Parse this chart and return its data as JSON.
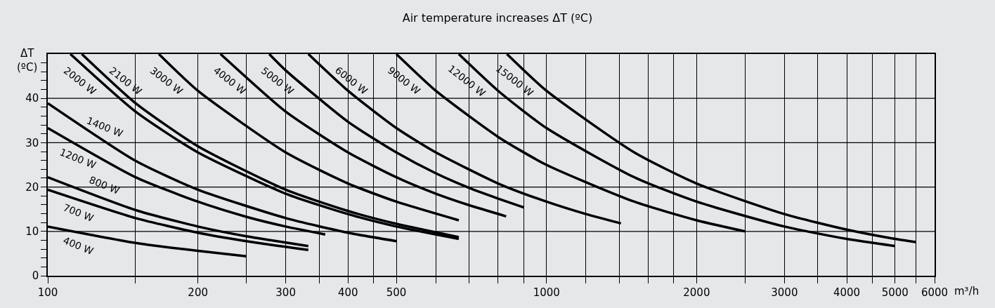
{
  "chart_data": {
    "type": "line",
    "title": "Air temperature increases ΔT (ºC)",
    "ylabel": "ΔT\n(ºC)",
    "xlabel": "m³/h",
    "log": "x",
    "xlim": [
      100,
      6000
    ],
    "xticks": [
      100,
      {
        "value": 150,
        "label": null
      },
      200,
      {
        "value": 250,
        "label": null
      },
      300,
      {
        "value": 350,
        "label": null
      },
      400,
      {
        "value": 450,
        "label": null
      },
      500,
      {
        "value": 600,
        "label": null
      },
      {
        "value": 700,
        "label": null
      },
      {
        "value": 800,
        "label": null
      },
      {
        "value": 900,
        "label": null
      },
      1000,
      {
        "value": 1200,
        "label": null
      },
      {
        "value": 1400,
        "label": null
      },
      {
        "value": 1600,
        "label": null
      },
      {
        "value": 1800,
        "label": null
      },
      2000,
      {
        "value": 2500,
        "label": null
      },
      3000,
      {
        "value": 3500,
        "label": null
      },
      4000,
      {
        "value": 4500,
        "label": null
      },
      5000,
      {
        "value": 5500,
        "label": null
      },
      6000
    ],
    "ylim": [
      0,
      50
    ],
    "yticks": [
      0,
      {
        "value": 2,
        "label": null
      },
      {
        "value": 4,
        "label": null
      },
      {
        "value": 6,
        "label": null
      },
      {
        "value": 8,
        "label": null
      },
      10,
      {
        "value": 12,
        "label": null
      },
      {
        "value": 14,
        "label": null
      },
      {
        "value": 16,
        "label": null
      },
      {
        "value": 18,
        "label": null
      },
      20,
      {
        "value": 22,
        "label": null
      },
      {
        "value": 24,
        "label": null
      },
      {
        "value": 26,
        "label": null
      },
      {
        "value": 28,
        "label": null
      },
      30,
      {
        "value": 32,
        "label": null
      },
      {
        "value": 34,
        "label": null
      },
      {
        "value": 36,
        "label": null
      },
      {
        "value": 38,
        "label": null
      },
      40,
      {
        "value": 42,
        "label": null
      },
      {
        "value": 44,
        "label": null
      },
      {
        "value": 46,
        "label": null
      },
      {
        "value": 48,
        "label": null
      }
    ],
    "grid": true,
    "legend": false,
    "marker": "none",
    "line_style": "solid",
    "series": [
      {
        "name": "400 W",
        "color": "#000000",
        "x": [
          100,
          150,
          200,
          250
        ],
        "values": [
          11.1,
          7.4,
          5.6,
          4.4
        ]
      },
      {
        "name": "700 W",
        "color": "#000000",
        "x": [
          100,
          150,
          200,
          250,
          333
        ],
        "values": [
          19.4,
          13.0,
          9.7,
          7.8,
          5.8
        ]
      },
      {
        "name": "800 W",
        "color": "#000000",
        "x": [
          100,
          150,
          200,
          250,
          333
        ],
        "values": [
          22.2,
          14.8,
          11.1,
          8.9,
          6.7
        ]
      },
      {
        "name": "1200 W",
        "color": "#000000",
        "x": [
          100,
          150,
          200,
          250,
          300,
          360
        ],
        "values": [
          33.3,
          22.2,
          16.7,
          13.3,
          11.1,
          9.3
        ]
      },
      {
        "name": "1400 W",
        "color": "#000000",
        "x": [
          100,
          150,
          200,
          300,
          400,
          500
        ],
        "values": [
          38.9,
          25.9,
          19.4,
          13.0,
          9.7,
          7.8
        ]
      },
      {
        "name": "2000 W",
        "color": "#000000",
        "x": [
          111,
          150,
          200,
          300,
          400,
          500,
          667
        ],
        "values": [
          50,
          37.0,
          27.8,
          18.5,
          13.9,
          11.1,
          8.3
        ]
      },
      {
        "name": "2100 W",
        "color": "#000000",
        "x": [
          117,
          150,
          200,
          300,
          400,
          500,
          667
        ],
        "values": [
          50,
          38.9,
          29.2,
          19.4,
          14.6,
          11.7,
          8.7
        ]
      },
      {
        "name": "3000 W",
        "color": "#000000",
        "x": [
          167,
          200,
          300,
          400,
          500,
          667
        ],
        "values": [
          50,
          41.7,
          27.8,
          20.8,
          16.7,
          12.5
        ]
      },
      {
        "name": "4000 W",
        "color": "#000000",
        "x": [
          222,
          300,
          400,
          500,
          600,
          700,
          830
        ],
        "values": [
          50,
          37.0,
          27.8,
          22.2,
          18.5,
          15.9,
          13.4
        ]
      },
      {
        "name": "5000 W",
        "color": "#000000",
        "x": [
          278,
          300,
          400,
          500,
          600,
          700,
          800,
          900
        ],
        "values": [
          50,
          46.3,
          34.7,
          27.8,
          23.1,
          19.8,
          17.4,
          15.4
        ]
      },
      {
        "name": "6000 W",
        "color": "#000000",
        "x": [
          333,
          400,
          500,
          600,
          800,
          1000,
          1200,
          1410
        ],
        "values": [
          50,
          41.7,
          33.3,
          27.8,
          20.8,
          16.7,
          13.9,
          11.8
        ]
      },
      {
        "name": "9000 W",
        "color": "#000000",
        "x": [
          500,
          600,
          800,
          1000,
          1500,
          2000,
          2500
        ],
        "values": [
          50,
          41.7,
          31.3,
          25.0,
          16.7,
          12.5,
          10.0
        ]
      },
      {
        "name": "12000 W",
        "color": "#000000",
        "x": [
          667,
          800,
          1000,
          1500,
          2000,
          3000,
          4000,
          5000
        ],
        "values": [
          50,
          41.7,
          33.3,
          22.2,
          16.7,
          11.1,
          8.3,
          6.7
        ]
      },
      {
        "name": "15000 W",
        "color": "#000000",
        "x": [
          833,
          1000,
          1500,
          2000,
          3000,
          4000,
          5000,
          5500
        ],
        "values": [
          50,
          41.7,
          27.8,
          20.8,
          13.9,
          10.4,
          8.3,
          7.6
        ]
      }
    ]
  }
}
